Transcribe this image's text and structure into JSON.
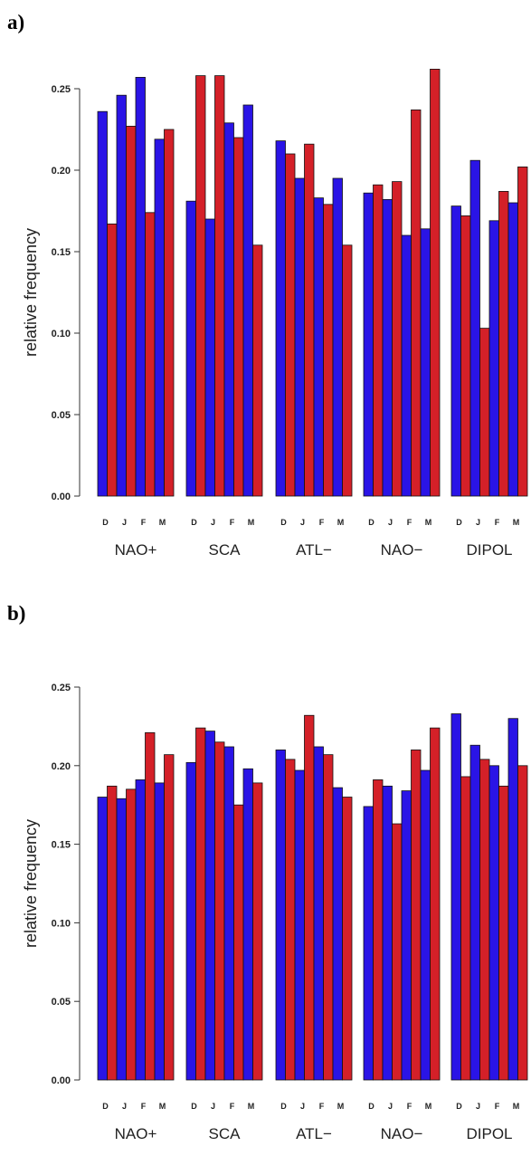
{
  "chart_data": [
    {
      "panel_label": "a)",
      "type": "bar",
      "ylabel": "relative frequency",
      "ylim": [
        0,
        0.26
      ],
      "yticks": [
        "0.00",
        "0.05",
        "0.10",
        "0.15",
        "0.20",
        "0.25"
      ],
      "groups": [
        "NAO+",
        "SCA",
        "ATL−",
        "NAO−",
        "DIPOL"
      ],
      "months": [
        "D",
        "J",
        "F",
        "M"
      ],
      "colors": [
        "#2a14e6",
        "#d42028"
      ],
      "values": [
        [
          [
            0.236,
            0.167
          ],
          [
            0.246,
            0.227
          ],
          [
            0.257,
            0.174
          ],
          [
            0.219,
            0.225
          ]
        ],
        [
          [
            0.181,
            0.258
          ],
          [
            0.17,
            0.258
          ],
          [
            0.229,
            0.22
          ],
          [
            0.24,
            0.154
          ]
        ],
        [
          [
            0.218,
            0.21
          ],
          [
            0.195,
            0.216
          ],
          [
            0.183,
            0.179
          ],
          [
            0.195,
            0.154
          ]
        ],
        [
          [
            0.186,
            0.191
          ],
          [
            0.182,
            0.193
          ],
          [
            0.16,
            0.237
          ],
          [
            0.164,
            0.262
          ]
        ],
        [
          [
            0.178,
            0.172
          ],
          [
            0.206,
            0.103
          ],
          [
            0.169,
            0.187
          ],
          [
            0.18,
            0.202
          ]
        ]
      ]
    },
    {
      "panel_label": "b)",
      "type": "bar",
      "ylabel": "relative frequency",
      "ylim": [
        0,
        0.25
      ],
      "yticks": [
        "0.00",
        "0.05",
        "0.10",
        "0.15",
        "0.20",
        "0.25"
      ],
      "groups": [
        "NAO+",
        "SCA",
        "ATL−",
        "NAO−",
        "DIPOL"
      ],
      "months": [
        "D",
        "J",
        "F",
        "M"
      ],
      "colors": [
        "#2a14e6",
        "#d42028"
      ],
      "values": [
        [
          [
            0.18,
            0.187
          ],
          [
            0.179,
            0.185
          ],
          [
            0.191,
            0.221
          ],
          [
            0.189,
            0.207
          ]
        ],
        [
          [
            0.202,
            0.224
          ],
          [
            0.222,
            0.215
          ],
          [
            0.212,
            0.175
          ],
          [
            0.198,
            0.189
          ]
        ],
        [
          [
            0.21,
            0.204
          ],
          [
            0.197,
            0.232
          ],
          [
            0.212,
            0.207
          ],
          [
            0.186,
            0.18
          ]
        ],
        [
          [
            0.174,
            0.191
          ],
          [
            0.187,
            0.163
          ],
          [
            0.184,
            0.21
          ],
          [
            0.197,
            0.224
          ]
        ],
        [
          [
            0.233,
            0.193
          ],
          [
            0.213,
            0.204
          ],
          [
            0.2,
            0.187
          ],
          [
            0.23,
            0.2
          ]
        ]
      ]
    }
  ]
}
